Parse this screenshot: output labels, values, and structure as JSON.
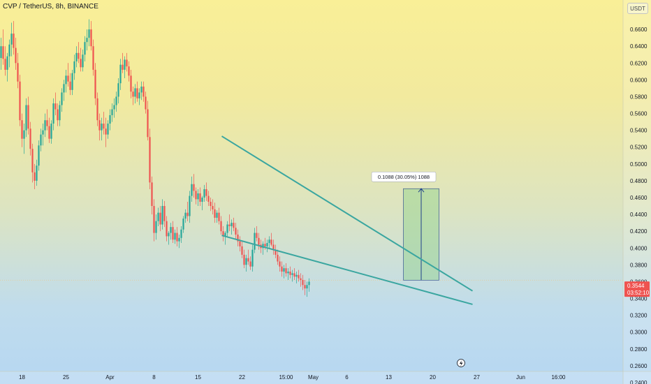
{
  "header": {
    "symbol": "CVP / TetherUS",
    "interval": "8h",
    "exchange": "BINANCE",
    "title": "CVP / TetherUS, 8h, BINANCE",
    "currency": "USDT"
  },
  "colors": {
    "up": "#26a69a",
    "down": "#ef5350",
    "trendline": "#3aa6a0",
    "measure_fill": "#8ed08a",
    "measure_line": "#1e3f8a",
    "last_price_line": "#e9c98a"
  },
  "icons": {
    "alert": "lightning-icon"
  },
  "chart_data": {
    "type": "candlestick",
    "title": "CVP / TetherUS, 8h, BINANCE",
    "ylabel": "USDT",
    "ylim": [
      0.23,
      0.69
    ],
    "y_ticks": [
      "0.6600",
      "0.6400",
      "0.6200",
      "0.6000",
      "0.5800",
      "0.5600",
      "0.5400",
      "0.5200",
      "0.5000",
      "0.4800",
      "0.4600",
      "0.4400",
      "0.4200",
      "0.4000",
      "0.3800",
      "0.3600",
      "0.3400",
      "0.3200",
      "0.3000",
      "0.2800",
      "0.2600",
      "0.2400"
    ],
    "x_ticks": [
      "18",
      "25",
      "Apr",
      "8",
      "15",
      "22",
      "15:00",
      "May",
      "6",
      "13",
      "20",
      "27",
      "Jun",
      "16:00"
    ],
    "x_tick_index": [
      10,
      31,
      52,
      73,
      94,
      115,
      136,
      149,
      165,
      185,
      206,
      227,
      248,
      266
    ],
    "last_price": {
      "value": 0.3544,
      "label": "0.3544",
      "countdown": "03:52:10"
    },
    "measure": {
      "label": "0.1088 (30.05%) 1088",
      "from_index": 192,
      "to_index": 209,
      "from": 0.3618,
      "to": 0.4706
    },
    "trendlines": [
      {
        "name": "upper",
        "start": [
          92,
          0.533
        ],
        "end": [
          205,
          0.349
        ]
      },
      {
        "name": "lower",
        "start": [
          92,
          0.415
        ],
        "end": [
          205,
          0.333
        ]
      }
    ],
    "candles_ohlc": [
      [
        0.626,
        0.65,
        0.612,
        0.64
      ],
      [
        0.64,
        0.66,
        0.618,
        0.625
      ],
      [
        0.625,
        0.64,
        0.605,
        0.612
      ],
      [
        0.612,
        0.632,
        0.598,
        0.628
      ],
      [
        0.628,
        0.648,
        0.615,
        0.642
      ],
      [
        0.642,
        0.668,
        0.628,
        0.655
      ],
      [
        0.655,
        0.67,
        0.63,
        0.638
      ],
      [
        0.638,
        0.65,
        0.612,
        0.62
      ],
      [
        0.62,
        0.632,
        0.59,
        0.598
      ],
      [
        0.598,
        0.606,
        0.545,
        0.552
      ],
      [
        0.552,
        0.56,
        0.52,
        0.53
      ],
      [
        0.53,
        0.548,
        0.512,
        0.54
      ],
      [
        0.54,
        0.578,
        0.532,
        0.57
      ],
      [
        0.57,
        0.58,
        0.535,
        0.542
      ],
      [
        0.542,
        0.55,
        0.51,
        0.518
      ],
      [
        0.518,
        0.524,
        0.478,
        0.49
      ],
      [
        0.49,
        0.5,
        0.47,
        0.48
      ],
      [
        0.48,
        0.505,
        0.474,
        0.498
      ],
      [
        0.498,
        0.528,
        0.492,
        0.522
      ],
      [
        0.522,
        0.542,
        0.515,
        0.535
      ],
      [
        0.535,
        0.548,
        0.522,
        0.54
      ],
      [
        0.54,
        0.56,
        0.532,
        0.552
      ],
      [
        0.552,
        0.565,
        0.54,
        0.545
      ],
      [
        0.545,
        0.555,
        0.525,
        0.53
      ],
      [
        0.53,
        0.552,
        0.524,
        0.548
      ],
      [
        0.548,
        0.578,
        0.54,
        0.572
      ],
      [
        0.572,
        0.585,
        0.558,
        0.565
      ],
      [
        0.565,
        0.572,
        0.545,
        0.552
      ],
      [
        0.552,
        0.575,
        0.545,
        0.57
      ],
      [
        0.57,
        0.59,
        0.562,
        0.585
      ],
      [
        0.585,
        0.6,
        0.575,
        0.595
      ],
      [
        0.595,
        0.612,
        0.585,
        0.605
      ],
      [
        0.605,
        0.62,
        0.592,
        0.598
      ],
      [
        0.598,
        0.608,
        0.582,
        0.588
      ],
      [
        0.588,
        0.612,
        0.582,
        0.608
      ],
      [
        0.608,
        0.63,
        0.6,
        0.622
      ],
      [
        0.622,
        0.64,
        0.615,
        0.632
      ],
      [
        0.632,
        0.645,
        0.62,
        0.625
      ],
      [
        0.625,
        0.638,
        0.61,
        0.615
      ],
      [
        0.615,
        0.636,
        0.61,
        0.63
      ],
      [
        0.63,
        0.652,
        0.622,
        0.645
      ],
      [
        0.645,
        0.66,
        0.635,
        0.65
      ],
      [
        0.65,
        0.672,
        0.64,
        0.66
      ],
      [
        0.66,
        0.67,
        0.635,
        0.64
      ],
      [
        0.64,
        0.648,
        0.605,
        0.612
      ],
      [
        0.612,
        0.62,
        0.57,
        0.578
      ],
      [
        0.578,
        0.585,
        0.545,
        0.552
      ],
      [
        0.552,
        0.56,
        0.528,
        0.54
      ],
      [
        0.54,
        0.555,
        0.528,
        0.548
      ],
      [
        0.548,
        0.562,
        0.535,
        0.542
      ],
      [
        0.542,
        0.555,
        0.52,
        0.535
      ],
      [
        0.535,
        0.552,
        0.53,
        0.548
      ],
      [
        0.548,
        0.565,
        0.54,
        0.558
      ],
      [
        0.558,
        0.572,
        0.55,
        0.565
      ],
      [
        0.565,
        0.578,
        0.555,
        0.57
      ],
      [
        0.57,
        0.586,
        0.562,
        0.58
      ],
      [
        0.58,
        0.602,
        0.572,
        0.596
      ],
      [
        0.596,
        0.625,
        0.588,
        0.618
      ],
      [
        0.618,
        0.632,
        0.608,
        0.612
      ],
      [
        0.612,
        0.628,
        0.602,
        0.624
      ],
      [
        0.624,
        0.632,
        0.61,
        0.616
      ],
      [
        0.616,
        0.622,
        0.598,
        0.605
      ],
      [
        0.605,
        0.612,
        0.578,
        0.586
      ],
      [
        0.586,
        0.592,
        0.57,
        0.58
      ],
      [
        0.58,
        0.595,
        0.572,
        0.59
      ],
      [
        0.59,
        0.598,
        0.574,
        0.578
      ],
      [
        0.578,
        0.59,
        0.57,
        0.585
      ],
      [
        0.585,
        0.598,
        0.576,
        0.592
      ],
      [
        0.592,
        0.598,
        0.574,
        0.58
      ],
      [
        0.58,
        0.586,
        0.56,
        0.565
      ],
      [
        0.565,
        0.575,
        0.528,
        0.532
      ],
      [
        0.532,
        0.542,
        0.47,
        0.478
      ],
      [
        0.478,
        0.485,
        0.44,
        0.45
      ],
      [
        0.45,
        0.458,
        0.408,
        0.418
      ],
      [
        0.418,
        0.44,
        0.41,
        0.432
      ],
      [
        0.432,
        0.448,
        0.426,
        0.442
      ],
      [
        0.442,
        0.45,
        0.42,
        0.428
      ],
      [
        0.428,
        0.458,
        0.422,
        0.45
      ],
      [
        0.45,
        0.456,
        0.425,
        0.432
      ],
      [
        0.432,
        0.438,
        0.408,
        0.414
      ],
      [
        0.414,
        0.42,
        0.404,
        0.418
      ],
      [
        0.418,
        0.43,
        0.41,
        0.425
      ],
      [
        0.425,
        0.432,
        0.406,
        0.41
      ],
      [
        0.41,
        0.422,
        0.405,
        0.418
      ],
      [
        0.418,
        0.425,
        0.402,
        0.408
      ],
      [
        0.408,
        0.416,
        0.4,
        0.412
      ],
      [
        0.412,
        0.426,
        0.406,
        0.422
      ],
      [
        0.422,
        0.438,
        0.418,
        0.435
      ],
      [
        0.435,
        0.446,
        0.43,
        0.442
      ],
      [
        0.442,
        0.455,
        0.432,
        0.438
      ],
      [
        0.438,
        0.468,
        0.43,
        0.462
      ],
      [
        0.462,
        0.485,
        0.455,
        0.476
      ],
      [
        0.476,
        0.488,
        0.46,
        0.468
      ],
      [
        0.468,
        0.472,
        0.452,
        0.458
      ],
      [
        0.458,
        0.47,
        0.45,
        0.465
      ],
      [
        0.465,
        0.472,
        0.45,
        0.455
      ],
      [
        0.455,
        0.462,
        0.445,
        0.46
      ],
      [
        0.46,
        0.475,
        0.455,
        0.47
      ],
      [
        0.47,
        0.478,
        0.456,
        0.462
      ],
      [
        0.462,
        0.468,
        0.45,
        0.455
      ],
      [
        0.455,
        0.46,
        0.444,
        0.45
      ],
      [
        0.45,
        0.458,
        0.44,
        0.446
      ],
      [
        0.446,
        0.454,
        0.43,
        0.436
      ],
      [
        0.436,
        0.445,
        0.43,
        0.442
      ],
      [
        0.442,
        0.448,
        0.428,
        0.432
      ],
      [
        0.432,
        0.438,
        0.416,
        0.42
      ],
      [
        0.42,
        0.426,
        0.408,
        0.414
      ],
      [
        0.414,
        0.42,
        0.404,
        0.418
      ],
      [
        0.418,
        0.432,
        0.414,
        0.428
      ],
      [
        0.428,
        0.44,
        0.42,
        0.426
      ],
      [
        0.426,
        0.434,
        0.416,
        0.43
      ],
      [
        0.43,
        0.436,
        0.42,
        0.424
      ],
      [
        0.424,
        0.43,
        0.41,
        0.416
      ],
      [
        0.416,
        0.422,
        0.402,
        0.408
      ],
      [
        0.408,
        0.414,
        0.396,
        0.402
      ],
      [
        0.402,
        0.408,
        0.388,
        0.392
      ],
      [
        0.392,
        0.398,
        0.376,
        0.38
      ],
      [
        0.38,
        0.392,
        0.372,
        0.388
      ],
      [
        0.388,
        0.398,
        0.38,
        0.384
      ],
      [
        0.384,
        0.39,
        0.374,
        0.378
      ],
      [
        0.378,
        0.404,
        0.372,
        0.398
      ],
      [
        0.398,
        0.424,
        0.394,
        0.418
      ],
      [
        0.418,
        0.426,
        0.408,
        0.412
      ],
      [
        0.412,
        0.418,
        0.398,
        0.404
      ],
      [
        0.404,
        0.41,
        0.394,
        0.4
      ],
      [
        0.4,
        0.408,
        0.392,
        0.405
      ],
      [
        0.405,
        0.412,
        0.398,
        0.402
      ],
      [
        0.402,
        0.41,
        0.395,
        0.406
      ],
      [
        0.406,
        0.414,
        0.4,
        0.41
      ],
      [
        0.41,
        0.418,
        0.402,
        0.404
      ],
      [
        0.404,
        0.41,
        0.392,
        0.398
      ],
      [
        0.398,
        0.404,
        0.388,
        0.392
      ],
      [
        0.392,
        0.398,
        0.38,
        0.384
      ],
      [
        0.384,
        0.39,
        0.372,
        0.378
      ],
      [
        0.378,
        0.384,
        0.366,
        0.372
      ],
      [
        0.372,
        0.38,
        0.364,
        0.376
      ],
      [
        0.376,
        0.382,
        0.366,
        0.37
      ],
      [
        0.37,
        0.376,
        0.362,
        0.372
      ],
      [
        0.372,
        0.378,
        0.364,
        0.368
      ],
      [
        0.368,
        0.374,
        0.36,
        0.37
      ],
      [
        0.37,
        0.376,
        0.362,
        0.366
      ],
      [
        0.366,
        0.372,
        0.358,
        0.368
      ],
      [
        0.368,
        0.374,
        0.36,
        0.364
      ],
      [
        0.364,
        0.37,
        0.354,
        0.362
      ],
      [
        0.362,
        0.368,
        0.35,
        0.356
      ],
      [
        0.356,
        0.362,
        0.344,
        0.352
      ],
      [
        0.352,
        0.36,
        0.342,
        0.356
      ],
      [
        0.356,
        0.364,
        0.348,
        0.36
      ]
    ]
  }
}
